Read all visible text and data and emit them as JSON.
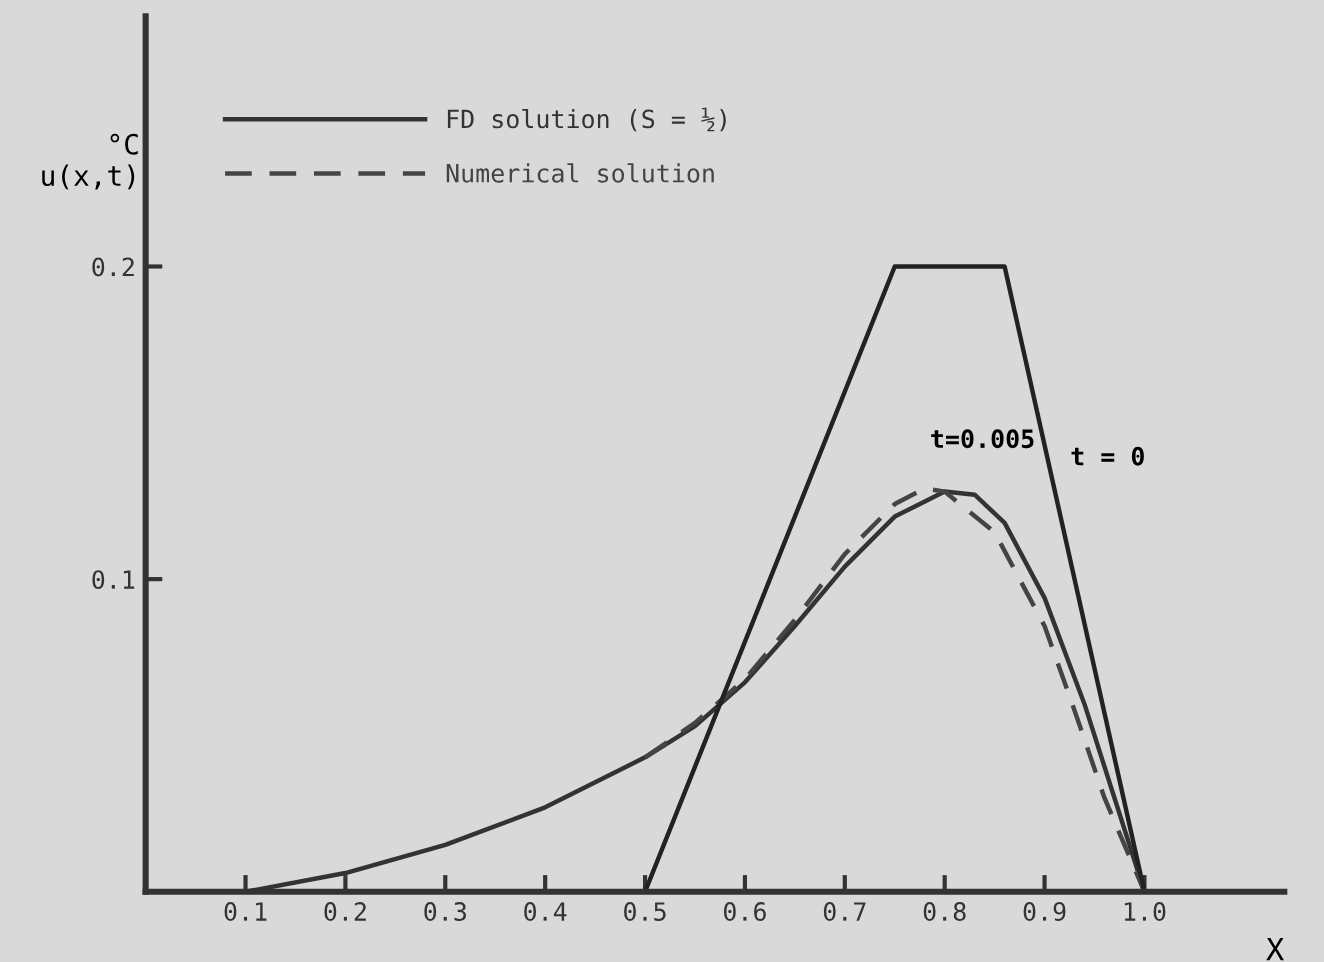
{
  "chart_data": {
    "type": "line",
    "xlabel": "X",
    "ylabel": "°C\nu(x,t)",
    "xlim": [
      0,
      1.14
    ],
    "ylim": [
      0,
      0.28
    ],
    "xticks": [
      0.1,
      0.2,
      0.3,
      0.4,
      0.5,
      0.6,
      0.7,
      0.8,
      0.9,
      {
        "value": 1.0,
        "label": "1.0"
      }
    ],
    "yticks": [
      0.1,
      0.2
    ],
    "legend": "top left",
    "grid": false,
    "marker": "none",
    "series": [
      {
        "name": "FD solution (S = ½)",
        "color": "#333333",
        "line_style": "solid",
        "x": [
          0.1,
          0.2,
          0.3,
          0.4,
          0.5,
          0.55,
          0.6,
          0.65,
          0.7,
          0.75,
          0.8,
          0.83,
          0.86,
          0.9,
          0.94,
          0.97,
          1.0
        ],
        "values": [
          0,
          0.006,
          0.015,
          0.027,
          0.043,
          0.053,
          0.067,
          0.085,
          0.104,
          0.12,
          0.128,
          0.127,
          0.118,
          0.094,
          0.06,
          0.03,
          0
        ]
      },
      {
        "name": "Numerical solution",
        "color": "#444444",
        "line_style": "dashed",
        "x": [
          0.5,
          0.55,
          0.6,
          0.65,
          0.7,
          0.75,
          0.78,
          0.8,
          0.85,
          0.9,
          0.93,
          0.96,
          1.0
        ],
        "values": [
          0.043,
          0.054,
          0.068,
          0.087,
          0.108,
          0.124,
          0.129,
          0.128,
          0.115,
          0.085,
          0.058,
          0.03,
          0
        ]
      },
      {
        "color": "#222222",
        "line_style": "solid",
        "x": [
          0.5,
          0.75,
          0.86,
          1.0
        ],
        "values": [
          0,
          0.2,
          0.2,
          0
        ]
      }
    ],
    "annotations": [
      "t=0.005",
      "t = 0"
    ]
  }
}
